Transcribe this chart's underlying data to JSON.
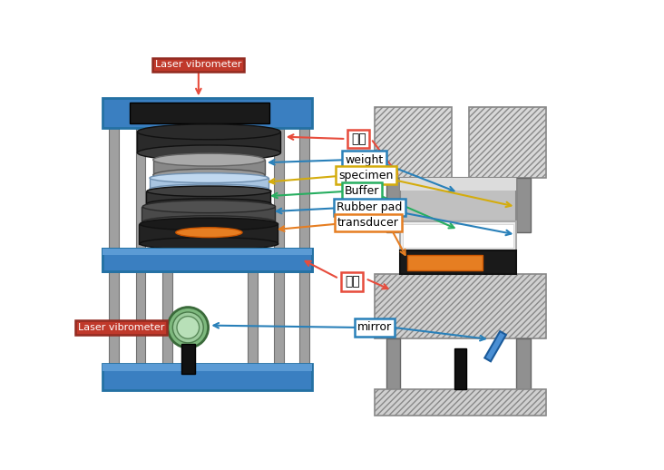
{
  "bg_color": "#ffffff",
  "labels": {
    "laser_vibrometer_top": "Laser vibrometer",
    "laser_vibrometer_bottom": "Laser vibrometer",
    "witpan": "윗판",
    "weight": "weight",
    "specimen": "specimen",
    "Buffer": "Buffer",
    "Rubber_pad": "Rubber pad",
    "transducer": "transducer",
    "mitpan": "밑판",
    "mirror": "mirror"
  },
  "lc": {
    "lv": {
      "bg": "#c0392b",
      "edge": "#922b21",
      "text": "#ffffff"
    },
    "witpan": {
      "bg": "#ffffff",
      "edge": "#e74c3c",
      "text": "#000000"
    },
    "weight": {
      "bg": "#ffffff",
      "edge": "#2980b9",
      "text": "#000000"
    },
    "specimen": {
      "bg": "#ffffff",
      "edge": "#d4ac0d",
      "text": "#000000"
    },
    "Buffer": {
      "bg": "#ffffff",
      "edge": "#27ae60",
      "text": "#000000"
    },
    "rpad": {
      "bg": "#ffffff",
      "edge": "#2980b9",
      "text": "#000000"
    },
    "transducer": {
      "bg": "#ffffff",
      "edge": "#e67e22",
      "text": "#000000"
    },
    "mitpan": {
      "bg": "#ffffff",
      "edge": "#e74c3c",
      "text": "#000000"
    },
    "mirror": {
      "bg": "#ffffff",
      "edge": "#2980b9",
      "text": "#000000"
    }
  },
  "ac": {
    "red": "#e74c3c",
    "blue": "#2980b9",
    "yellow": "#d4ac0d",
    "green": "#27ae60",
    "orange": "#e67e22"
  },
  "jig_blue": "#3a7fc1",
  "jig_blue2": "#2471a3",
  "jig_blue3": "#5b9bd5",
  "rod_color": "#a0a0a0",
  "rod_edge": "#707070"
}
